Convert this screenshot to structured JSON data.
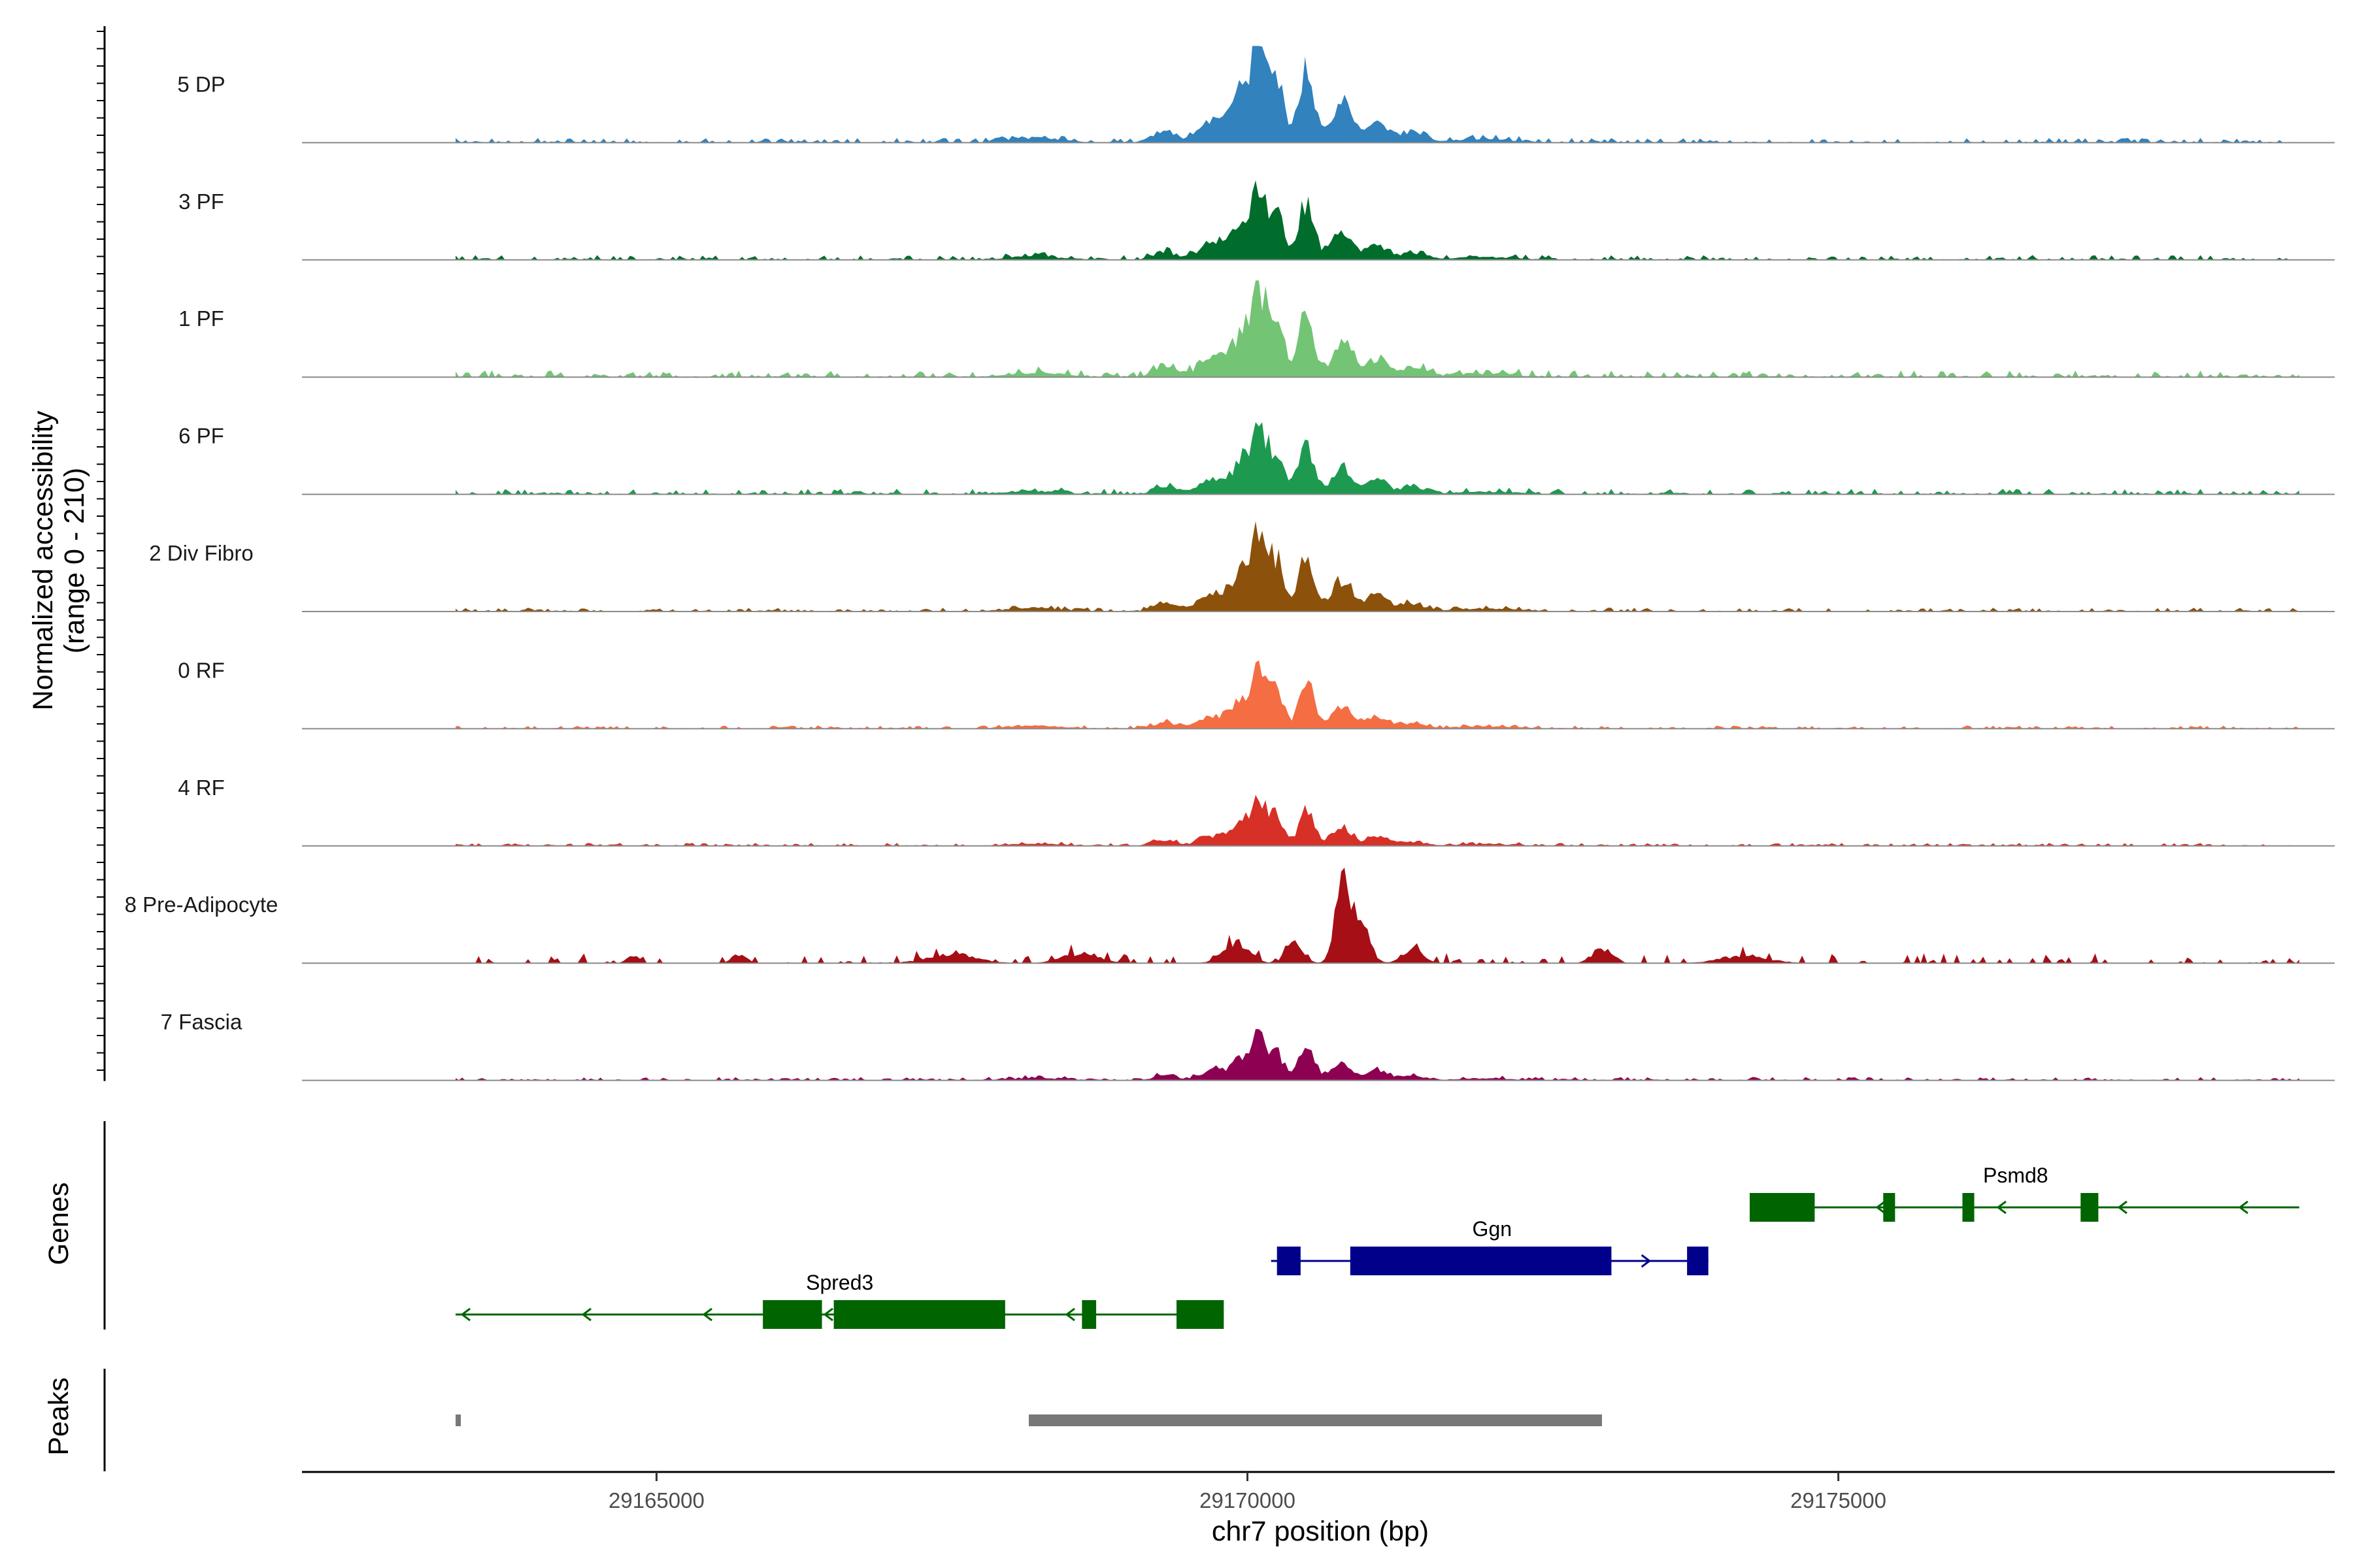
{
  "chart_data": {
    "type": "area",
    "title": "",
    "ylabel_line1": "Normalized accessibility",
    "ylabel_line2": "(range 0 - 210)",
    "xlabel": "chr7 position (bp)",
    "chromosome": "chr7",
    "xlim": [
      29162000,
      29179200
    ],
    "ylim": [
      0,
      210
    ],
    "x_ticks": [
      29165000,
      29170000,
      29175000
    ],
    "x_tick_labels": [
      "29165000",
      "29170000",
      "29175000"
    ],
    "track_start": 29163300,
    "track_end": 29178900,
    "series": [
      {
        "name": "5 DP",
        "color": "#3182BD",
        "shape": "main",
        "peak": 1.0,
        "noise": 0.05
      },
      {
        "name": "3 PF",
        "color": "#006D2C",
        "shape": "main",
        "peak": 0.72,
        "noise": 0.07
      },
      {
        "name": "1 PF",
        "color": "#74C476",
        "shape": "main",
        "peak": 0.87,
        "noise": 0.08
      },
      {
        "name": "6 PF",
        "color": "#1D9A4F",
        "shape": "main",
        "peak": 0.64,
        "noise": 0.09
      },
      {
        "name": "2 Div Fibro",
        "color": "#8C510A",
        "shape": "main",
        "peak": 0.79,
        "noise": 0.05
      },
      {
        "name": "0 RF",
        "color": "#F46D43",
        "shape": "main",
        "peak": 0.56,
        "noise": 0.06
      },
      {
        "name": "4 RF",
        "color": "#D73027",
        "shape": "main",
        "peak": 0.45,
        "noise": 0.07
      },
      {
        "name": "8 Pre-Adipocyte",
        "color": "#A50F15",
        "shape": "adipo",
        "peak": 0.76,
        "noise": 0.14
      },
      {
        "name": "7 Fascia",
        "color": "#8E0152",
        "shape": "main",
        "peak": 0.44,
        "noise": 0.08
      }
    ],
    "genes": [
      {
        "name": "Spred3",
        "strand": "-",
        "color": "#006400",
        "row": 3,
        "start": 29163300,
        "end": 29169800,
        "exons": [
          [
            29165900,
            29166400
          ],
          [
            29166500,
            29167950
          ],
          [
            29168600,
            29168720
          ],
          [
            29169400,
            29169800
          ]
        ],
        "label_x": 29166550
      },
      {
        "name": "Ggn",
        "strand": "+",
        "color": "#00008B",
        "row": 2,
        "start": 29170200,
        "end": 29173900,
        "exons": [
          [
            29170250,
            29170450
          ],
          [
            29170870,
            29173080
          ],
          [
            29173720,
            29173900
          ]
        ],
        "label_x": 29172070
      },
      {
        "name": "Psmd8",
        "strand": "-",
        "color": "#006400",
        "row": 1,
        "start": 29174250,
        "end": 29178900,
        "exons": [
          [
            29174250,
            29174800
          ],
          [
            29175380,
            29175480
          ],
          [
            29176050,
            29176150
          ],
          [
            29177050,
            29177200
          ]
        ],
        "label_x": 29176500
      }
    ],
    "peaks": [
      [
        29163300,
        29163340
      ],
      [
        29168150,
        29173000
      ]
    ],
    "peak_color": "#787878",
    "panel_labels": {
      "genes": "Genes",
      "peaks": "Peaks"
    }
  }
}
